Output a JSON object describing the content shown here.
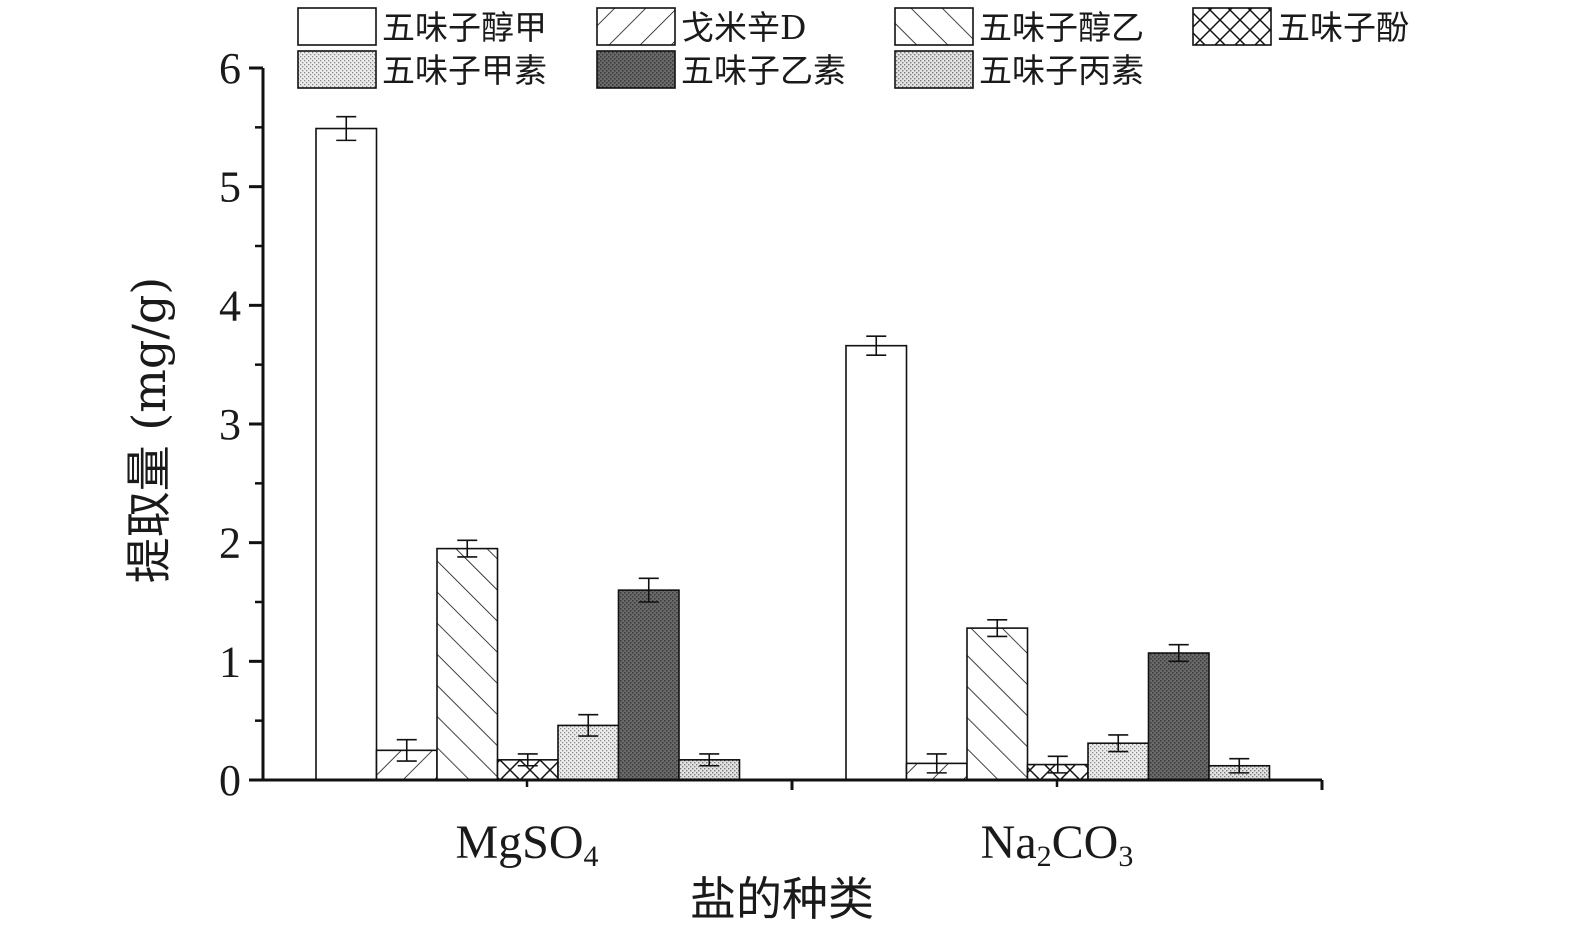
{
  "chart_data": {
    "type": "bar",
    "xlabel": "盐的种类",
    "ylabel": "提取量 (mg/g)",
    "ylim": [
      0,
      6
    ],
    "yticks": [
      "0",
      "1",
      "2",
      "3",
      "4",
      "5",
      "6"
    ],
    "categories": [
      {
        "main": "MgSO",
        "sub": "4",
        "after": ""
      },
      {
        "main": "Na",
        "sub": "2",
        "after": "CO",
        "sub2": "3"
      }
    ],
    "legend_position": "top",
    "series": [
      {
        "name": "五味子醇甲",
        "pattern": "none",
        "values": [
          5.49,
          3.66
        ],
        "errors": [
          0.1,
          0.08
        ]
      },
      {
        "name": "戈米辛D",
        "pattern": "forward-hatch",
        "values": [
          0.25,
          0.14
        ],
        "errors": [
          0.09,
          0.08
        ]
      },
      {
        "name": "五味子醇乙",
        "pattern": "back-hatch",
        "values": [
          1.95,
          1.28
        ],
        "errors": [
          0.07,
          0.07
        ]
      },
      {
        "name": "五味子酚",
        "pattern": "cross-hatch",
        "values": [
          0.17,
          0.13
        ],
        "errors": [
          0.05,
          0.07
        ]
      },
      {
        "name": "五味子甲素",
        "pattern": "light-dots",
        "values": [
          0.46,
          0.31
        ],
        "errors": [
          0.09,
          0.07
        ]
      },
      {
        "name": "五味子乙素",
        "pattern": "dark-dots",
        "values": [
          1.6,
          1.07
        ],
        "errors": [
          0.1,
          0.07
        ]
      },
      {
        "name": "五味子丙素",
        "pattern": "light-dots-2",
        "values": [
          0.17,
          0.12
        ],
        "errors": [
          0.05,
          0.06
        ]
      }
    ]
  }
}
